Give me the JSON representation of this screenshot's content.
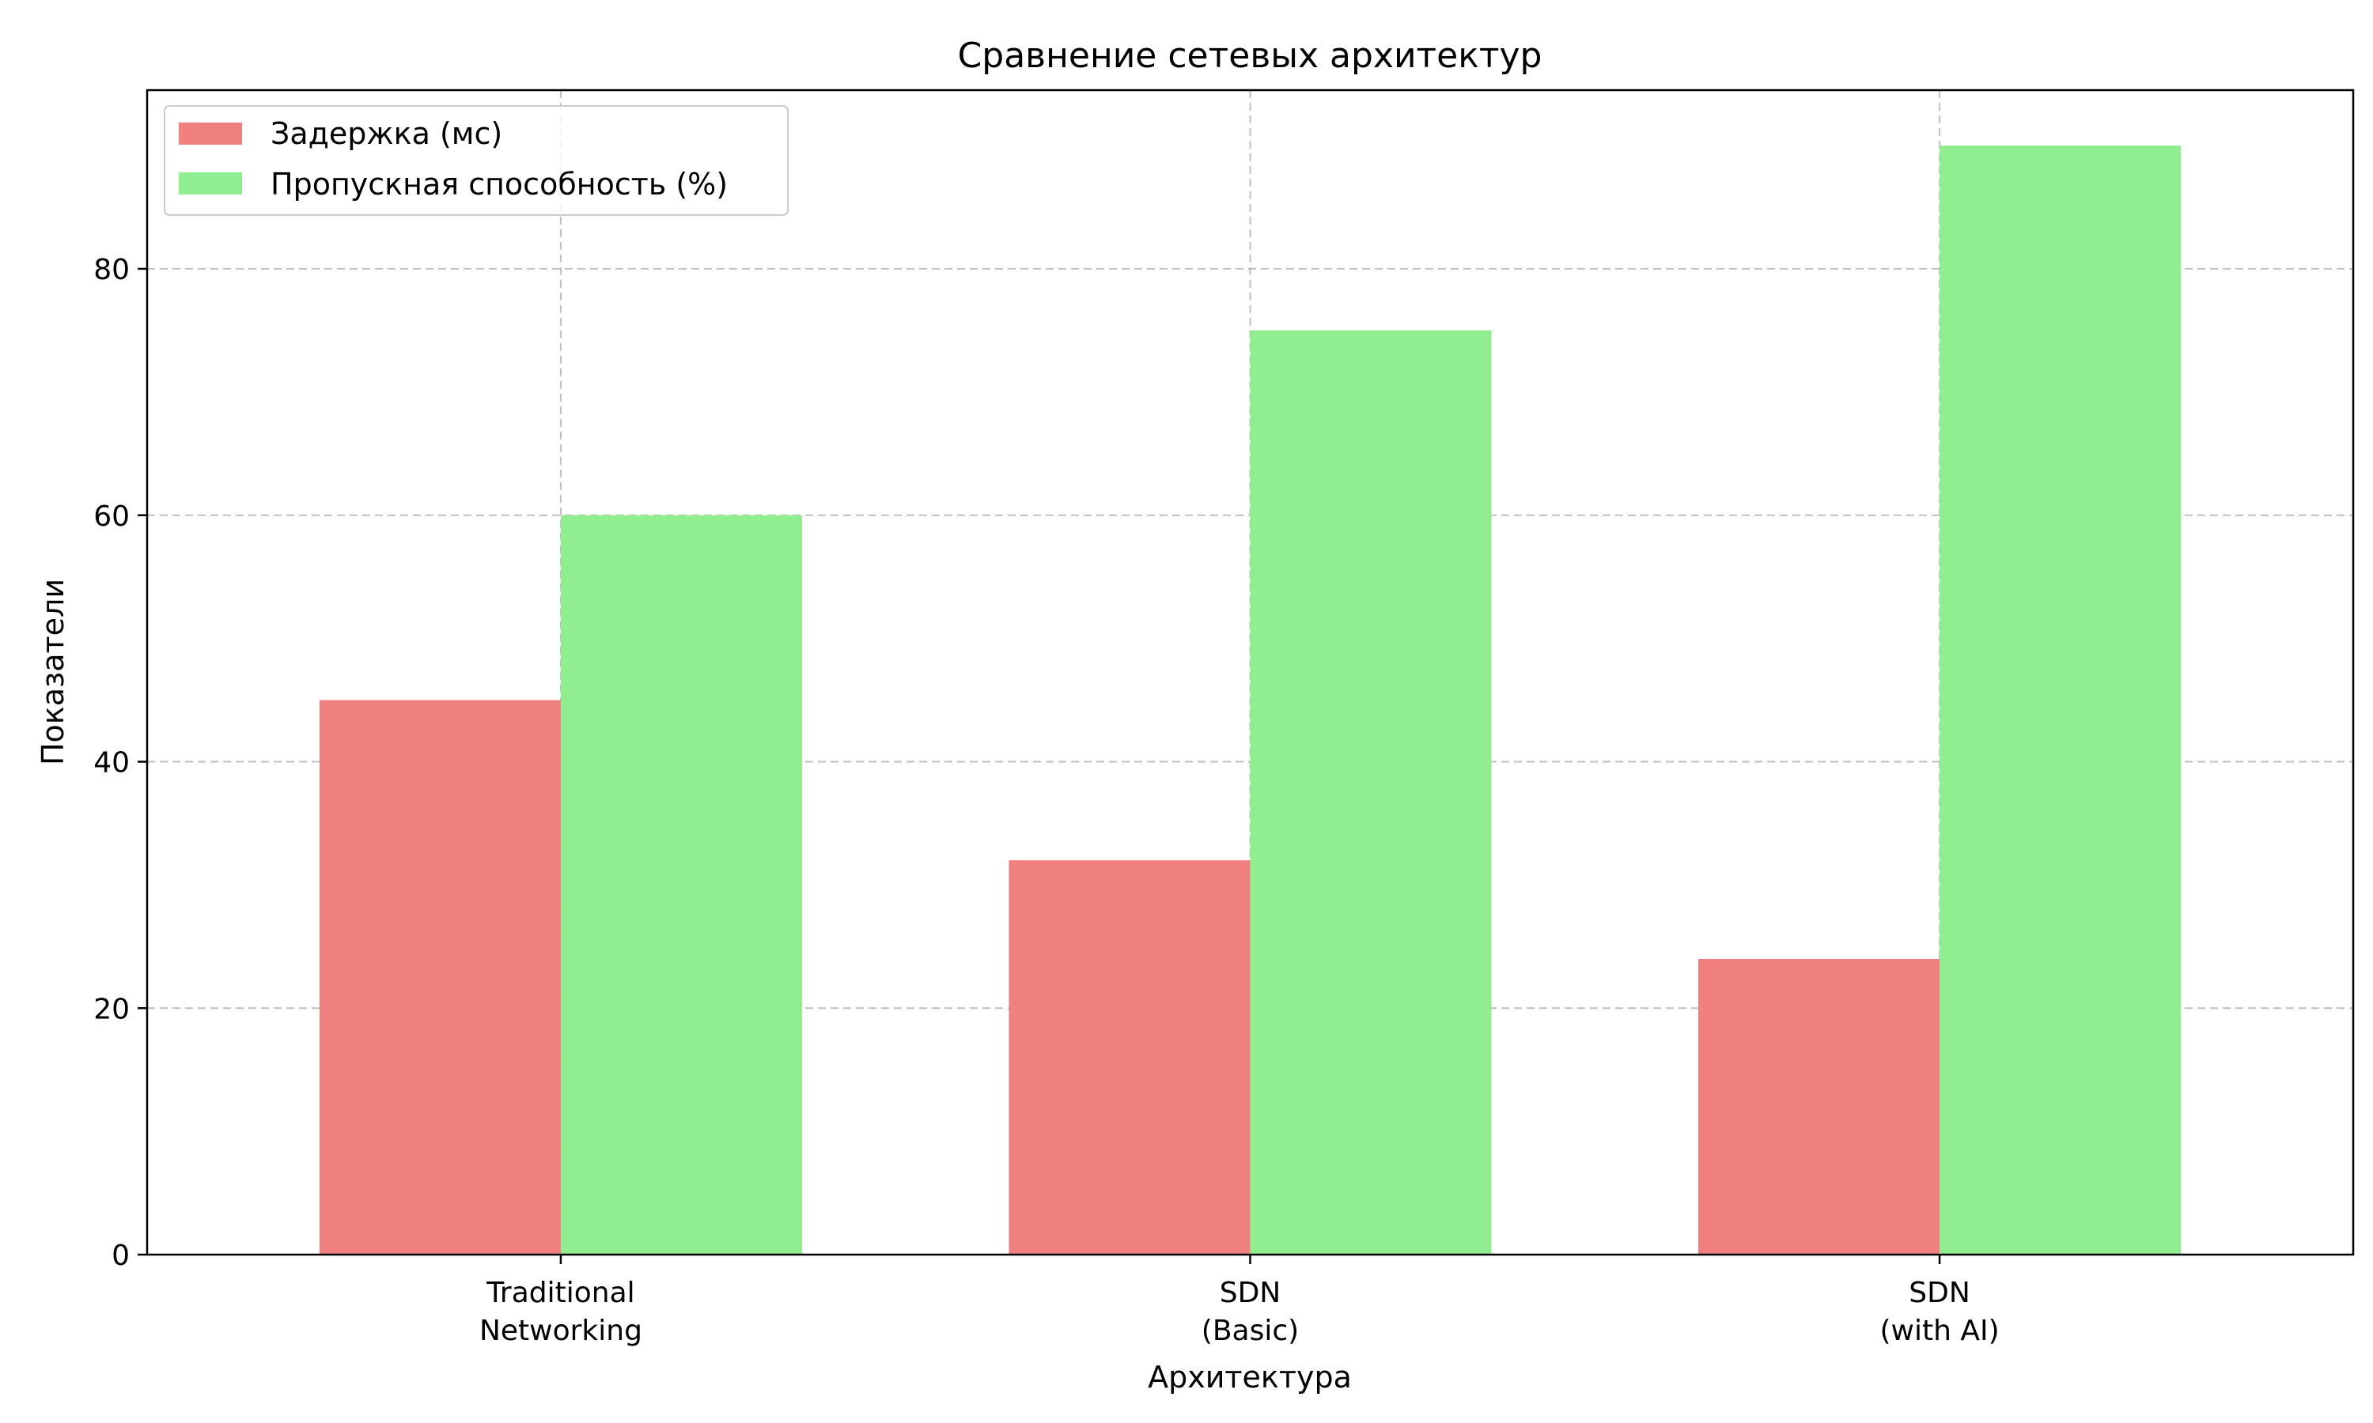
{
  "chart_data": {
    "type": "bar",
    "title": "Сравнение сетевых архитектур",
    "xlabel": "Архитектура",
    "ylabel": "Показатели",
    "categories": [
      [
        "Traditional",
        "Networking"
      ],
      [
        "SDN",
        "(Basic)"
      ],
      [
        "SDN",
        "(with AI)"
      ]
    ],
    "series": [
      {
        "name": "Задержка (мс)",
        "color": "#f08080",
        "values": [
          45,
          32,
          24
        ]
      },
      {
        "name": "Пропускная способность (%)",
        "color": "#90ee90",
        "values": [
          60,
          75,
          90
        ]
      }
    ],
    "yticks": [
      0,
      20,
      40,
      60,
      80
    ],
    "ylim": [
      0,
      94.5
    ],
    "grid": true,
    "legend_position": "top-left"
  }
}
